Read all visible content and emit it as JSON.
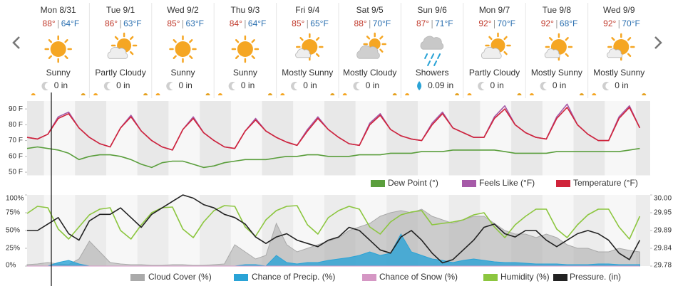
{
  "days": [
    {
      "date": "Mon 8/31",
      "high": "88°",
      "low": "64°F",
      "condition": "Sunny",
      "precip": "0 in"
    },
    {
      "date": "Tue 9/1",
      "high": "86°",
      "low": "63°F",
      "condition": "Partly Cloudy",
      "precip": "0 in"
    },
    {
      "date": "Wed 9/2",
      "high": "85°",
      "low": "63°F",
      "condition": "Sunny",
      "precip": "0 in"
    },
    {
      "date": "Thu 9/3",
      "high": "84°",
      "low": "64°F",
      "condition": "Sunny",
      "precip": "0 in"
    },
    {
      "date": "Fri 9/4",
      "high": "85°",
      "low": "65°F",
      "condition": "Mostly Sunny",
      "precip": "0 in"
    },
    {
      "date": "Sat 9/5",
      "high": "88°",
      "low": "70°F",
      "condition": "Mostly Cloudy",
      "precip": "0 in"
    },
    {
      "date": "Sun 9/6",
      "high": "87°",
      "low": "71°F",
      "condition": "Showers",
      "precip": "0.09 in"
    },
    {
      "date": "Mon 9/7",
      "high": "92°",
      "low": "70°F",
      "condition": "Partly Cloudy",
      "precip": "0 in"
    },
    {
      "date": "Tue 9/8",
      "high": "92°",
      "low": "68°F",
      "condition": "Mostly Sunny",
      "precip": "0 in"
    },
    {
      "date": "Wed 9/9",
      "high": "92°",
      "low": "70°F",
      "condition": "Mostly Sunny",
      "precip": "0 in"
    }
  ],
  "chart_data": [
    {
      "type": "line",
      "ylim": [
        48,
        95
      ],
      "yticks": [
        {
          "value": 90,
          "label": "90 F"
        },
        {
          "value": 80,
          "label": "80 F"
        },
        {
          "value": 70,
          "label": "70 F"
        },
        {
          "value": 60,
          "label": "60 F"
        },
        {
          "value": 50,
          "label": "50 F"
        }
      ],
      "series": [
        {
          "name": "Dew Point (°)",
          "color": "#5a9e3c",
          "kind": "line",
          "values": [
            65,
            66,
            65,
            64,
            62,
            58,
            60,
            61,
            61,
            60,
            58,
            55,
            53,
            56,
            57,
            57,
            55,
            53,
            54,
            56,
            57,
            58,
            58,
            58,
            59,
            60,
            60,
            61,
            61,
            60,
            60,
            60,
            61,
            61,
            61,
            62,
            62,
            62,
            63,
            63,
            63,
            64,
            64,
            64,
            64,
            64,
            63,
            62,
            62,
            62,
            62,
            63,
            63,
            63,
            63,
            63,
            63,
            63,
            64,
            65
          ]
        },
        {
          "name": "Feels Like (°F)",
          "color": "#a65aa8",
          "kind": "line",
          "values": [
            72,
            71,
            74,
            85,
            88,
            78,
            72,
            68,
            66,
            78,
            86,
            76,
            70,
            66,
            64,
            77,
            85,
            75,
            70,
            66,
            65,
            76,
            84,
            76,
            72,
            69,
            67,
            77,
            85,
            77,
            72,
            68,
            67,
            81,
            87,
            77,
            73,
            71,
            70,
            81,
            88,
            78,
            75,
            72,
            72,
            85,
            92,
            80,
            75,
            72,
            71,
            85,
            93,
            80,
            74,
            70,
            70,
            85,
            92,
            78
          ]
        },
        {
          "name": "Temperature (°F)",
          "color": "#d0243a",
          "kind": "line",
          "values": [
            72,
            71,
            74,
            84,
            87,
            78,
            72,
            68,
            66,
            78,
            85,
            76,
            70,
            66,
            64,
            77,
            84,
            75,
            70,
            66,
            65,
            76,
            83,
            76,
            72,
            69,
            67,
            76,
            84,
            77,
            72,
            68,
            67,
            80,
            86,
            77,
            73,
            71,
            70,
            80,
            87,
            78,
            75,
            72,
            72,
            84,
            90,
            80,
            75,
            72,
            71,
            84,
            91,
            80,
            74,
            70,
            70,
            84,
            91,
            78
          ]
        }
      ]
    },
    {
      "type": "line",
      "ylim": [
        0,
        100
      ],
      "y2lim": [
        29.78,
        30.0
      ],
      "yticks": [
        {
          "value": 100,
          "label": "100%"
        },
        {
          "value": 75,
          "label": "75%"
        },
        {
          "value": 50,
          "label": "50%"
        },
        {
          "value": 25,
          "label": "25%"
        },
        {
          "value": 0,
          "label": "0%"
        }
      ],
      "y2ticks": [
        {
          "value": 30.0,
          "label": "30.00"
        },
        {
          "value": 29.945,
          "label": "29.95"
        },
        29.89,
        {
          "value": 29.835,
          "label": "29.84"
        },
        29.78
      ],
      "series": [
        {
          "name": "Cloud Cover (%)",
          "color": "#aaaaaa",
          "kind": "area",
          "values": [
            2,
            3,
            5,
            3,
            2,
            10,
            35,
            20,
            5,
            3,
            2,
            2,
            1,
            1,
            2,
            2,
            1,
            1,
            2,
            3,
            30,
            20,
            10,
            15,
            60,
            30,
            20,
            25,
            30,
            35,
            40,
            50,
            55,
            60,
            70,
            75,
            78,
            75,
            80,
            70,
            65,
            60,
            65,
            70,
            70,
            60,
            50,
            45,
            45,
            40,
            45,
            40,
            30,
            25,
            25,
            20,
            20,
            25,
            22,
            20
          ]
        },
        {
          "name": "Chance of Precip. (%)",
          "color": "#2aa3d6",
          "kind": "area",
          "values": [
            0,
            0,
            0,
            5,
            8,
            3,
            0,
            0,
            0,
            0,
            0,
            0,
            0,
            0,
            0,
            0,
            0,
            0,
            0,
            0,
            0,
            2,
            2,
            0,
            15,
            5,
            3,
            5,
            5,
            8,
            10,
            12,
            15,
            20,
            15,
            18,
            45,
            20,
            15,
            10,
            8,
            5,
            8,
            10,
            8,
            6,
            5,
            5,
            4,
            3,
            3,
            3,
            2,
            2,
            2,
            3,
            3,
            2,
            2,
            2
          ]
        },
        {
          "name": "Chance of Snow (%)",
          "color": "#d597c4",
          "kind": "area",
          "values": [
            0,
            0,
            0,
            0,
            0,
            0,
            0,
            0,
            0,
            0,
            0,
            0,
            0,
            0,
            0,
            0,
            0,
            0,
            0,
            0,
            0,
            0,
            0,
            0,
            0,
            0,
            0,
            0,
            0,
            0,
            0,
            0,
            0,
            0,
            0,
            0,
            0,
            0,
            0,
            0,
            0,
            0,
            0,
            0,
            0,
            0,
            0,
            0,
            0,
            0,
            0,
            0,
            0,
            0,
            0,
            0,
            0,
            0,
            0,
            0
          ]
        },
        {
          "name": "Humidity (%)",
          "color": "#8cc63f",
          "kind": "line",
          "values": [
            74,
            84,
            82,
            52,
            38,
            55,
            72,
            80,
            82,
            50,
            38,
            58,
            75,
            82,
            83,
            52,
            40,
            62,
            78,
            85,
            84,
            55,
            42,
            65,
            78,
            84,
            85,
            58,
            45,
            68,
            78,
            84,
            80,
            55,
            45,
            62,
            72,
            76,
            78,
            58,
            60,
            62,
            65,
            72,
            75,
            55,
            40,
            58,
            70,
            80,
            80,
            52,
            40,
            58,
            72,
            80,
            80,
            55,
            38,
            70
          ]
        },
        {
          "name": "Pressure. (in)",
          "color": "#222222",
          "kind": "line",
          "axis": "y2",
          "values": [
            29.89,
            29.89,
            29.91,
            29.93,
            29.88,
            29.86,
            29.92,
            29.94,
            29.94,
            29.96,
            29.93,
            29.9,
            29.94,
            29.96,
            29.98,
            30.0,
            29.99,
            29.97,
            29.96,
            29.94,
            29.93,
            29.91,
            29.87,
            29.85,
            29.87,
            29.88,
            29.86,
            29.85,
            29.84,
            29.86,
            29.87,
            29.9,
            29.89,
            29.86,
            29.83,
            29.82,
            29.87,
            29.89,
            29.86,
            29.82,
            29.79,
            29.8,
            29.83,
            29.86,
            29.9,
            29.91,
            29.88,
            29.87,
            29.89,
            29.89,
            29.86,
            29.84,
            29.86,
            29.88,
            29.89,
            29.88,
            29.86,
            29.82,
            29.8,
            29.86
          ]
        }
      ]
    }
  ]
}
